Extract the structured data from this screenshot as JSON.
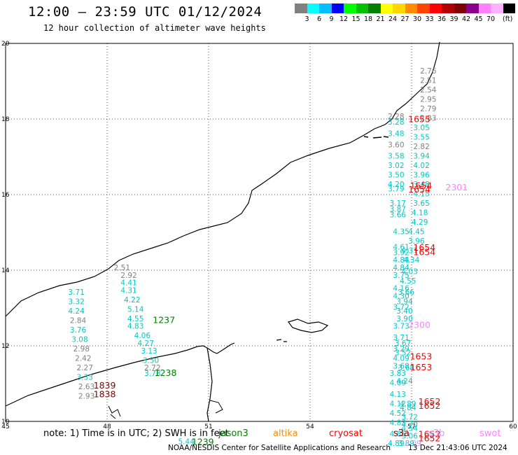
{
  "header": {
    "title": "12:00 – 23:59 UTC 01/12/2024",
    "subtitle": "12 hour collection of altimeter wave heights"
  },
  "colorbar": {
    "unit": "(ft)",
    "colors": [
      "#808080",
      "#00ffff",
      "#00bfff",
      "#0000ff",
      "#00ff00",
      "#00c000",
      "#008000",
      "#ffff00",
      "#ffd700",
      "#ff8c00",
      "#ff4500",
      "#ff0000",
      "#b00000",
      "#800000",
      "#8b008b",
      "#ff80ff",
      "#ffb0ff",
      "#000000"
    ],
    "labels": [
      "3",
      "6",
      "9",
      "12",
      "15",
      "18",
      "21",
      "24",
      "27",
      "30",
      "33",
      "36",
      "39",
      "42",
      "45",
      "70"
    ]
  },
  "axes": {
    "x_ticks": [
      "45",
      "48",
      "51",
      "54",
      "57",
      "60"
    ],
    "y_ticks": [
      "10",
      "12",
      "14",
      "16",
      "18",
      "20"
    ]
  },
  "satellites": {
    "jason3": {
      "label": "jason3",
      "color": "#008000"
    },
    "altika": {
      "label": "altika",
      "color": "#ff8c00"
    },
    "cryosat": {
      "label": "cryosat",
      "color": "#ff0000"
    },
    "s3a": {
      "label": "s3a",
      "color": "#800000"
    },
    "s3b": {
      "label": "s3b",
      "color": "#c8a0ff"
    },
    "swot": {
      "label": "swot",
      "color": "#ff80ff"
    }
  },
  "observations": [
    {
      "lon": 57.25,
      "lat": 19.2,
      "value": "2.76",
      "color": "#808080"
    },
    {
      "lon": 57.25,
      "lat": 18.95,
      "value": "2.51",
      "color": "#808080"
    },
    {
      "lon": 57.25,
      "lat": 18.7,
      "value": "2.54",
      "color": "#808080"
    },
    {
      "lon": 57.25,
      "lat": 18.45,
      "value": "2.95",
      "color": "#808080"
    },
    {
      "lon": 57.25,
      "lat": 18.2,
      "value": "2.79",
      "color": "#808080"
    },
    {
      "lon": 57.25,
      "lat": 17.95,
      "value": "2.83",
      "color": "#808080"
    },
    {
      "lon": 56.3,
      "lat": 18.0,
      "value": "2.28",
      "color": "#808080"
    },
    {
      "lon": 56.3,
      "lat": 17.85,
      "value": "3.28",
      "color": "#00c8c8"
    },
    {
      "lon": 57.05,
      "lat": 17.7,
      "value": "3.05",
      "color": "#00c8c8"
    },
    {
      "lon": 56.3,
      "lat": 17.55,
      "value": "3.48",
      "color": "#00c8c8"
    },
    {
      "lon": 57.05,
      "lat": 17.45,
      "value": "3.55",
      "color": "#00c8c8"
    },
    {
      "lon": 56.3,
      "lat": 17.25,
      "value": "3.60",
      "color": "#808080"
    },
    {
      "lon": 57.05,
      "lat": 17.2,
      "value": "2.82",
      "color": "#808080"
    },
    {
      "lon": 56.3,
      "lat": 16.95,
      "value": "3.58",
      "color": "#00c8c8"
    },
    {
      "lon": 57.05,
      "lat": 16.95,
      "value": "3.94",
      "color": "#00c8c8"
    },
    {
      "lon": 56.3,
      "lat": 16.7,
      "value": "3.02",
      "color": "#00c8c8"
    },
    {
      "lon": 57.05,
      "lat": 16.7,
      "value": "4.02",
      "color": "#00c8c8"
    },
    {
      "lon": 56.3,
      "lat": 16.45,
      "value": "3.50",
      "color": "#00c8c8"
    },
    {
      "lon": 57.05,
      "lat": 16.45,
      "value": "3.96",
      "color": "#00c8c8"
    },
    {
      "lon": 56.3,
      "lat": 16.2,
      "value": "4.20",
      "color": "#00c8c8"
    },
    {
      "lon": 56.3,
      "lat": 16.08,
      "value": "3.79",
      "color": "#00c8c8"
    },
    {
      "lon": 57.05,
      "lat": 16.2,
      "value": "3.48",
      "color": "#00c8c8"
    },
    {
      "lon": 57.05,
      "lat": 15.95,
      "value": "4.15",
      "color": "#00c8c8"
    },
    {
      "lon": 57.05,
      "lat": 15.7,
      "value": "3.65",
      "color": "#00c8c8"
    },
    {
      "lon": 56.35,
      "lat": 15.7,
      "value": "3.17",
      "color": "#00c8c8"
    },
    {
      "lon": 56.35,
      "lat": 15.55,
      "value": "3.87",
      "color": "#00c8c8"
    },
    {
      "lon": 56.35,
      "lat": 15.4,
      "value": "3.66",
      "color": "#00c8c8"
    },
    {
      "lon": 57.0,
      "lat": 15.45,
      "value": "4.18",
      "color": "#00c8c8"
    },
    {
      "lon": 57.0,
      "lat": 15.2,
      "value": "4.29",
      "color": "#00c8c8"
    },
    {
      "lon": 56.45,
      "lat": 14.95,
      "value": "4.35",
      "color": "#00c8c8"
    },
    {
      "lon": 56.9,
      "lat": 14.95,
      "value": "4.45",
      "color": "#00c8c8"
    },
    {
      "lon": 56.9,
      "lat": 14.7,
      "value": "3.96",
      "color": "#00c8c8"
    },
    {
      "lon": 56.45,
      "lat": 14.55,
      "value": "4.61",
      "color": "#00c8c8"
    },
    {
      "lon": 56.45,
      "lat": 14.4,
      "value": "3.92",
      "color": "#00c8c8"
    },
    {
      "lon": 56.7,
      "lat": 14.45,
      "value": "4.31",
      "color": "#00c8c8"
    },
    {
      "lon": 56.45,
      "lat": 14.2,
      "value": "4.84",
      "color": "#00c8c8"
    },
    {
      "lon": 56.75,
      "lat": 14.2,
      "value": "4.34",
      "color": "#00c8c8"
    },
    {
      "lon": 56.45,
      "lat": 14.0,
      "value": "4.84",
      "color": "#00c8c8"
    },
    {
      "lon": 56.7,
      "lat": 13.9,
      "value": "4.03",
      "color": "#00c8c8"
    },
    {
      "lon": 56.45,
      "lat": 13.8,
      "value": "3.75",
      "color": "#00c8c8"
    },
    {
      "lon": 56.65,
      "lat": 13.65,
      "value": "4.55",
      "color": "#00c8c8"
    },
    {
      "lon": 56.45,
      "lat": 13.45,
      "value": "4.16",
      "color": "#00c8c8"
    },
    {
      "lon": 56.6,
      "lat": 13.35,
      "value": "3.66",
      "color": "#00c8c8"
    },
    {
      "lon": 56.45,
      "lat": 13.25,
      "value": "4.30",
      "color": "#00c8c8"
    },
    {
      "lon": 56.55,
      "lat": 13.1,
      "value": "3.94",
      "color": "#00c8c8"
    },
    {
      "lon": 56.45,
      "lat": 12.95,
      "value": "3.72",
      "color": "#00c8c8"
    },
    {
      "lon": 56.55,
      "lat": 12.85,
      "value": "3.40",
      "color": "#00c8c8"
    },
    {
      "lon": 56.55,
      "lat": 12.65,
      "value": "3.90",
      "color": "#00c8c8"
    },
    {
      "lon": 56.45,
      "lat": 12.45,
      "value": "3.73",
      "color": "#00c8c8"
    },
    {
      "lon": 56.45,
      "lat": 12.15,
      "value": "3.71",
      "color": "#00c8c8"
    },
    {
      "lon": 56.5,
      "lat": 12.0,
      "value": "3.67",
      "color": "#00c8c8"
    },
    {
      "lon": 56.45,
      "lat": 11.85,
      "value": "3.29",
      "color": "#00c8c8"
    },
    {
      "lon": 56.5,
      "lat": 11.75,
      "value": "3.52",
      "color": "#00c8c8"
    },
    {
      "lon": 56.45,
      "lat": 11.6,
      "value": "4.09",
      "color": "#00c8c8"
    },
    {
      "lon": 56.45,
      "lat": 11.4,
      "value": "3.68",
      "color": "#00c8c8"
    },
    {
      "lon": 56.6,
      "lat": 11.35,
      "value": "3.68",
      "color": "#00c8c8"
    },
    {
      "lon": 56.35,
      "lat": 11.2,
      "value": "3.83",
      "color": "#00c8c8"
    },
    {
      "lon": 56.55,
      "lat": 11.0,
      "value": "4.24",
      "color": "#00c8c8"
    },
    {
      "lon": 56.35,
      "lat": 10.95,
      "value": "4.09",
      "color": "#00c8c8"
    },
    {
      "lon": 56.35,
      "lat": 10.65,
      "value": "4.13",
      "color": "#00c8c8"
    },
    {
      "lon": 56.35,
      "lat": 10.4,
      "value": "4.12",
      "color": "#00c8c8"
    },
    {
      "lon": 56.65,
      "lat": 10.4,
      "value": "4.89",
      "color": "#00c8c8"
    },
    {
      "lon": 56.65,
      "lat": 10.3,
      "value": "4.84",
      "color": "#00c8c8"
    },
    {
      "lon": 56.35,
      "lat": 10.15,
      "value": "4.52",
      "color": "#00c8c8"
    },
    {
      "lon": 56.7,
      "lat": 10.05,
      "value": "3.72",
      "color": "#00c8c8"
    },
    {
      "lon": 56.35,
      "lat": 9.9,
      "value": "4.83",
      "color": "#00c8c8"
    },
    {
      "lon": 56.7,
      "lat": 9.85,
      "value": "4.70",
      "color": "#00c8c8"
    },
    {
      "lon": 56.7,
      "lat": 9.75,
      "value": "4.54",
      "color": "#00c8c8"
    },
    {
      "lon": 56.35,
      "lat": 9.6,
      "value": "4.85",
      "color": "#00c8c8"
    },
    {
      "lon": 56.7,
      "lat": 9.55,
      "value": "5.06",
      "color": "#00c8c8"
    },
    {
      "lon": 56.3,
      "lat": 9.35,
      "value": "4.89",
      "color": "#00c8c8"
    },
    {
      "lon": 56.6,
      "lat": 9.35,
      "value": "3.89",
      "color": "#00c8c8"
    },
    {
      "lon": 56.8,
      "lat": 9.35,
      "value": "5.09",
      "color": "#c8a0ff"
    },
    {
      "lon": 48.2,
      "lat": 14.0,
      "value": "2.51",
      "color": "#808080"
    },
    {
      "lon": 48.4,
      "lat": 13.8,
      "value": "2.92",
      "color": "#808080"
    },
    {
      "lon": 48.4,
      "lat": 13.6,
      "value": "4.41",
      "color": "#00c8c8"
    },
    {
      "lon": 48.4,
      "lat": 13.4,
      "value": "4.31",
      "color": "#00c8c8"
    },
    {
      "lon": 48.5,
      "lat": 13.15,
      "value": "4.22",
      "color": "#00c8c8"
    },
    {
      "lon": 48.6,
      "lat": 12.9,
      "value": "5.14",
      "color": "#00c8c8"
    },
    {
      "lon": 48.6,
      "lat": 12.65,
      "value": "4.55",
      "color": "#00c8c8"
    },
    {
      "lon": 48.6,
      "lat": 12.45,
      "value": "4.83",
      "color": "#00c8c8"
    },
    {
      "lon": 48.8,
      "lat": 12.2,
      "value": "4.06",
      "color": "#00c8c8"
    },
    {
      "lon": 48.9,
      "lat": 12.0,
      "value": "4.27",
      "color": "#00c8c8"
    },
    {
      "lon": 49.0,
      "lat": 11.8,
      "value": "3.13",
      "color": "#00c8c8"
    },
    {
      "lon": 49.05,
      "lat": 11.55,
      "value": "3.50",
      "color": "#00c8c8"
    },
    {
      "lon": 49.1,
      "lat": 11.35,
      "value": "2.72",
      "color": "#808080"
    },
    {
      "lon": 49.1,
      "lat": 11.2,
      "value": "3.78",
      "color": "#00c8c8"
    },
    {
      "lon": 46.85,
      "lat": 13.35,
      "value": "3.71",
      "color": "#00c8c8"
    },
    {
      "lon": 46.85,
      "lat": 13.1,
      "value": "3.32",
      "color": "#00c8c8"
    },
    {
      "lon": 46.85,
      "lat": 12.85,
      "value": "4.24",
      "color": "#00c8c8"
    },
    {
      "lon": 46.9,
      "lat": 12.6,
      "value": "2.84",
      "color": "#808080"
    },
    {
      "lon": 46.9,
      "lat": 12.35,
      "value": "3.76",
      "color": "#00c8c8"
    },
    {
      "lon": 46.95,
      "lat": 12.1,
      "value": "3.08",
      "color": "#00c8c8"
    },
    {
      "lon": 47.0,
      "lat": 11.85,
      "value": "2.98",
      "color": "#808080"
    },
    {
      "lon": 47.05,
      "lat": 11.6,
      "value": "2.42",
      "color": "#808080"
    },
    {
      "lon": 47.1,
      "lat": 11.35,
      "value": "2.27",
      "color": "#808080"
    },
    {
      "lon": 47.1,
      "lat": 11.1,
      "value": "3.33",
      "color": "#00c8c8"
    },
    {
      "lon": 47.15,
      "lat": 10.85,
      "value": "2.63",
      "color": "#808080"
    },
    {
      "lon": 47.15,
      "lat": 10.6,
      "value": "2.93",
      "color": "#808080"
    },
    {
      "lon": 50.1,
      "lat": 9.4,
      "value": "5.44",
      "color": "#00c8c8"
    }
  ],
  "pass_times": [
    {
      "lon": 56.9,
      "lat": 17.92,
      "value": "1655",
      "color": "#ff0000"
    },
    {
      "lon": 56.95,
      "lat": 16.16,
      "value": "1654",
      "color": "#ff0000"
    },
    {
      "lon": 56.9,
      "lat": 16.06,
      "value": "1654",
      "color": "#ff0000"
    },
    {
      "lon": 58.0,
      "lat": 16.11,
      "value": "2301",
      "color": "#ff80ff"
    },
    {
      "lon": 57.05,
      "lat": 14.52,
      "value": "1654",
      "color": "#ff0000"
    },
    {
      "lon": 57.05,
      "lat": 14.4,
      "value": "1654",
      "color": "#ff0000"
    },
    {
      "lon": 56.9,
      "lat": 12.47,
      "value": "2300",
      "color": "#ff80ff"
    },
    {
      "lon": 56.95,
      "lat": 11.64,
      "value": "1653",
      "color": "#ff0000"
    },
    {
      "lon": 56.95,
      "lat": 11.35,
      "value": "1653",
      "color": "#ff0000"
    },
    {
      "lon": 57.2,
      "lat": 10.44,
      "value": "1652",
      "color": "#ff0000"
    },
    {
      "lon": 57.2,
      "lat": 10.33,
      "value": "1652",
      "color": "#ff0000"
    },
    {
      "lon": 57.2,
      "lat": 9.58,
      "value": "1652",
      "color": "#ff0000"
    },
    {
      "lon": 57.2,
      "lat": 9.47,
      "value": "1652",
      "color": "#ff0000"
    },
    {
      "lon": 49.35,
      "lat": 12.6,
      "value": "1237",
      "color": "#008000"
    },
    {
      "lon": 49.4,
      "lat": 11.2,
      "value": "1238",
      "color": "#008000"
    },
    {
      "lon": 50.5,
      "lat": 9.38,
      "value": "1239",
      "color": "#008000"
    },
    {
      "lon": 47.6,
      "lat": 10.87,
      "value": "1839",
      "color": "#800000"
    },
    {
      "lon": 47.6,
      "lat": 10.64,
      "value": "1838",
      "color": "#800000"
    }
  ],
  "note": "note:  1) Time is in UTC; 2) SWH is in feet",
  "footer": {
    "credit": "NOAA/NESDIS Center for Satellite Applications and Research",
    "generated": "13 Dec 21:43:06 UTC 2024"
  }
}
